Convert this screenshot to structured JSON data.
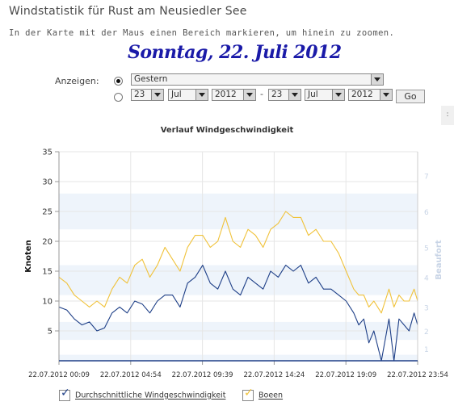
{
  "page": {
    "title": "Windstatistik für Rust am Neusiedler See",
    "subtitle": "In der Karte mit der Maus einen Bereich markieren, um hinein zu zoomen.",
    "date_heading": "Sonntag, 22. Juli 2012"
  },
  "controls": {
    "show_label": "Anzeigen:",
    "period_select": "Gestern",
    "from_day": "23",
    "from_month": "Jul",
    "from_year": "2012",
    "to_day": "23",
    "to_month": "Jul",
    "to_year": "2012",
    "range_separator": "-",
    "go_label": "Go",
    "side_tab": ":"
  },
  "legend": {
    "avg_label": "Durchschnittliche Windgeschwindigkeit",
    "gust_label": "Boeen",
    "check": "✓"
  },
  "colors": {
    "avg": "#1e3f87",
    "gust": "#f0c23a",
    "band": "#eef4fb",
    "beaufort_text": "#c8d4e6"
  },
  "chart_data": {
    "type": "line",
    "title": "Verlauf Windgeschwindigkeit",
    "ylabel": "Knoten",
    "y2label": "Beaufort",
    "ylim": [
      0,
      35
    ],
    "yticks": [
      5,
      10,
      15,
      20,
      25,
      30,
      35
    ],
    "xlim_minutes": [
      9,
      1434
    ],
    "xticks": [
      {
        "minute": 9,
        "label": "22.07.2012 00:09"
      },
      {
        "minute": 294,
        "label": "22.07.2012 04:54"
      },
      {
        "minute": 579,
        "label": "22.07.2012 09:39"
      },
      {
        "minute": 864,
        "label": "22.07.2012 14:24"
      },
      {
        "minute": 1149,
        "label": "22.07.2012 19:09"
      },
      {
        "minute": 1434,
        "label": "22.07.2012 23:54"
      }
    ],
    "beaufort_ticks": [
      {
        "bft": "1",
        "knots": 2
      },
      {
        "bft": "2",
        "knots": 5
      },
      {
        "bft": "3",
        "knots": 9
      },
      {
        "bft": "4",
        "knots": 14
      },
      {
        "bft": "5",
        "knots": 19
      },
      {
        "bft": "6",
        "knots": 25
      },
      {
        "bft": "7",
        "knots": 31
      }
    ],
    "bands_knots": [
      [
        0,
        1
      ],
      [
        3.5,
        6.5
      ],
      [
        11,
        16
      ],
      [
        22,
        28
      ]
    ],
    "series": [
      {
        "name": "Durchschnittliche Windgeschwindigkeit",
        "color": "#1e3f87",
        "x_minutes": [
          9,
          40,
          70,
          100,
          130,
          160,
          190,
          220,
          250,
          280,
          310,
          340,
          370,
          400,
          430,
          460,
          490,
          520,
          550,
          580,
          610,
          640,
          670,
          700,
          730,
          760,
          790,
          820,
          850,
          880,
          910,
          940,
          970,
          1000,
          1030,
          1060,
          1090,
          1120,
          1150,
          1180,
          1200,
          1220,
          1240,
          1260,
          1290,
          1320,
          1340,
          1360,
          1380,
          1400,
          1420,
          1434
        ],
        "values": [
          9,
          8.5,
          7,
          6,
          6.5,
          5,
          5.5,
          8,
          9,
          8,
          10,
          9.5,
          8,
          10,
          11,
          11,
          9,
          13,
          14,
          16,
          13,
          12,
          15,
          12,
          11,
          14,
          13,
          12,
          15,
          14,
          16,
          15,
          16,
          13,
          14,
          12,
          12,
          11,
          10,
          8,
          6,
          7,
          3,
          5,
          0,
          7,
          0,
          7,
          6,
          5,
          8,
          6
        ]
      },
      {
        "name": "Boeen",
        "color": "#f0c23a",
        "x_minutes": [
          9,
          40,
          70,
          100,
          130,
          160,
          190,
          220,
          250,
          280,
          310,
          340,
          370,
          400,
          430,
          460,
          490,
          520,
          550,
          580,
          610,
          640,
          670,
          700,
          730,
          760,
          790,
          820,
          850,
          880,
          910,
          940,
          970,
          1000,
          1030,
          1060,
          1090,
          1120,
          1150,
          1180,
          1200,
          1220,
          1240,
          1260,
          1290,
          1320,
          1340,
          1360,
          1380,
          1400,
          1420,
          1434
        ],
        "values": [
          14,
          13,
          11,
          10,
          9,
          10,
          9,
          12,
          14,
          13,
          16,
          17,
          14,
          16,
          19,
          17,
          15,
          19,
          21,
          21,
          19,
          20,
          24,
          20,
          19,
          22,
          21,
          19,
          22,
          23,
          25,
          24,
          24,
          21,
          22,
          20,
          20,
          18,
          15,
          12,
          11,
          11,
          9,
          10,
          8,
          12,
          9,
          11,
          10,
          10,
          12,
          10
        ]
      }
    ]
  }
}
